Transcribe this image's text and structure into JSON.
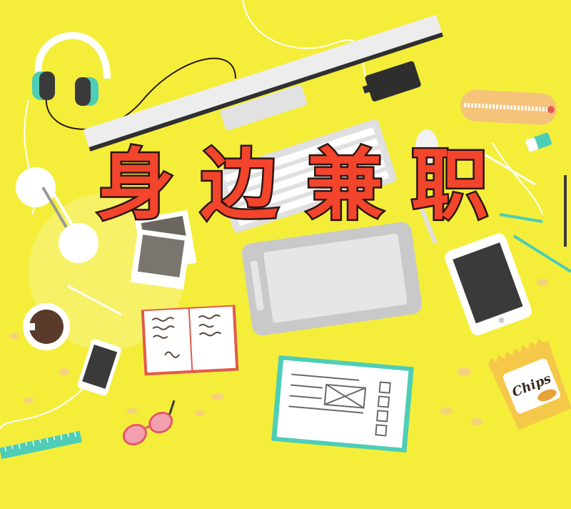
{
  "headline": {
    "chars": [
      "身",
      "边",
      "兼",
      "职"
    ]
  },
  "chips_label": "Chips",
  "colors": {
    "background": "#f4ee3a",
    "title_fill": "#f2452c",
    "title_stroke": "#2b1613",
    "teal": "#4ecdb7",
    "device_grey": "#c7c7c7",
    "dark": "#3a3a3a"
  },
  "icons": [
    "headphones-icon",
    "monitor-icon",
    "keyboard-icon",
    "mouse-icon",
    "drawing-tablet-icon",
    "tablet-icon",
    "phone-icon",
    "coffee-cup-icon",
    "notebook-icon",
    "sketchbook-icon",
    "photos-icon",
    "glasses-icon",
    "ruler-icon",
    "pencil-case-icon",
    "eraser-icon",
    "chips-bag-icon",
    "desk-lamp-icon",
    "hard-drive-icon"
  ]
}
